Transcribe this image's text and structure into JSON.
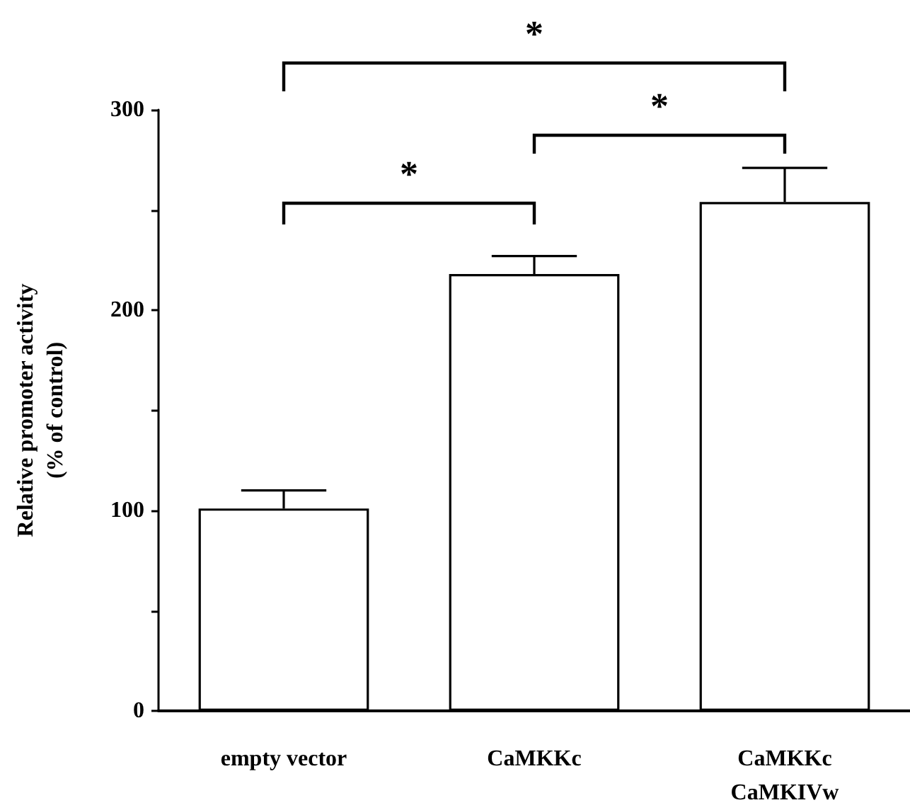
{
  "chart_data": {
    "type": "bar",
    "ylabel": "Relative promoter activity\n(% of control)",
    "categories": [
      "empty vector",
      "CaMKKc",
      "CaMKKc\nCaMKIVw"
    ],
    "values": [
      101,
      218,
      254
    ],
    "errors": [
      [
        101,
        110
      ],
      [
        218,
        227
      ],
      [
        254,
        271
      ]
    ],
    "color": "#ffffff",
    "ylim": [
      0,
      300
    ],
    "yticks": [
      0,
      {
        "value": 50,
        "label": null
      },
      100,
      {
        "value": 150,
        "label": null
      },
      200,
      {
        "value": 250,
        "label": null
      },
      300
    ],
    "grid": false,
    "annotations": [
      "*",
      "*",
      "*"
    ]
  }
}
